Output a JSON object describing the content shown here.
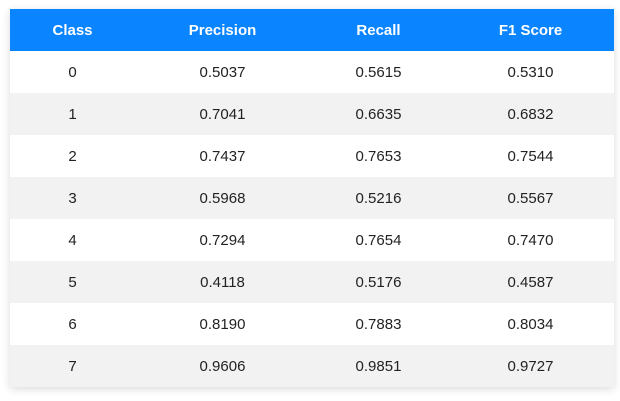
{
  "colors": {
    "header_bg": "#0a84ff",
    "row_odd": "#ffffff",
    "row_even": "#f2f2f2"
  },
  "chart_data": {
    "type": "table",
    "columns": [
      "Class",
      "Precision",
      "Recall",
      "F1 Score"
    ],
    "rows": [
      [
        "0",
        "0.5037",
        "0.5615",
        "0.5310"
      ],
      [
        "1",
        "0.7041",
        "0.6635",
        "0.6832"
      ],
      [
        "2",
        "0.7437",
        "0.7653",
        "0.7544"
      ],
      [
        "3",
        "0.5968",
        "0.5216",
        "0.5567"
      ],
      [
        "4",
        "0.7294",
        "0.7654",
        "0.7470"
      ],
      [
        "5",
        "0.4118",
        "0.5176",
        "0.4587"
      ],
      [
        "6",
        "0.8190",
        "0.7883",
        "0.8034"
      ],
      [
        "7",
        "0.9606",
        "0.9851",
        "0.9727"
      ]
    ]
  }
}
